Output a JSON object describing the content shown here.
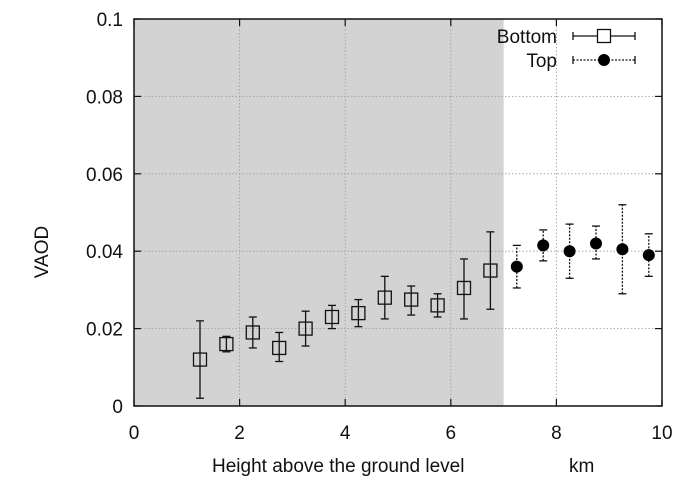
{
  "chart_data": {
    "type": "scatter",
    "title": "",
    "xlabel": "Height above the ground level",
    "xunit": "km",
    "ylabel": "VAOD",
    "xlim": [
      0,
      10
    ],
    "ylim": [
      0,
      0.1
    ],
    "xticks": [
      0,
      2,
      4,
      6,
      8,
      10
    ],
    "yticks": [
      0,
      0.02,
      0.04,
      0.06,
      0.08,
      0.1
    ],
    "xtick_labels": [
      "0",
      "2",
      "4",
      "6",
      "8",
      "10"
    ],
    "ytick_labels": [
      "0",
      "0.02",
      "0.04",
      "0.06",
      "0.08",
      "0.1"
    ],
    "grid": true,
    "shaded_region": {
      "x_from": 0,
      "x_to": 7,
      "color": "#d3d3d3"
    },
    "legend": {
      "position": "top-right"
    },
    "series": [
      {
        "name": "Bottom",
        "marker": "open-square",
        "error_style": "solid",
        "points": [
          {
            "x": 1.25,
            "y": 0.012,
            "low": 0.002,
            "high": 0.022
          },
          {
            "x": 1.75,
            "y": 0.016,
            "low": 0.014,
            "high": 0.018
          },
          {
            "x": 2.25,
            "y": 0.019,
            "low": 0.015,
            "high": 0.023
          },
          {
            "x": 2.75,
            "y": 0.015,
            "low": 0.0115,
            "high": 0.019
          },
          {
            "x": 3.25,
            "y": 0.02,
            "low": 0.0155,
            "high": 0.0245
          },
          {
            "x": 3.75,
            "y": 0.023,
            "low": 0.02,
            "high": 0.026
          },
          {
            "x": 4.25,
            "y": 0.024,
            "low": 0.0205,
            "high": 0.0275
          },
          {
            "x": 4.75,
            "y": 0.028,
            "low": 0.0225,
            "high": 0.0335
          },
          {
            "x": 5.25,
            "y": 0.0275,
            "low": 0.0235,
            "high": 0.031
          },
          {
            "x": 5.75,
            "y": 0.026,
            "low": 0.023,
            "high": 0.029
          },
          {
            "x": 6.25,
            "y": 0.0305,
            "low": 0.0225,
            "high": 0.038
          },
          {
            "x": 6.75,
            "y": 0.035,
            "low": 0.025,
            "high": 0.045
          }
        ]
      },
      {
        "name": "Top",
        "marker": "filled-circle",
        "error_style": "dashed",
        "points": [
          {
            "x": 7.25,
            "y": 0.036,
            "low": 0.0305,
            "high": 0.0415
          },
          {
            "x": 7.75,
            "y": 0.0415,
            "low": 0.0375,
            "high": 0.0455
          },
          {
            "x": 8.25,
            "y": 0.04,
            "low": 0.033,
            "high": 0.047
          },
          {
            "x": 8.75,
            "y": 0.042,
            "low": 0.038,
            "high": 0.0465
          },
          {
            "x": 9.25,
            "y": 0.0405,
            "low": 0.029,
            "high": 0.052
          },
          {
            "x": 9.75,
            "y": 0.039,
            "low": 0.0335,
            "high": 0.0445
          }
        ]
      }
    ]
  }
}
